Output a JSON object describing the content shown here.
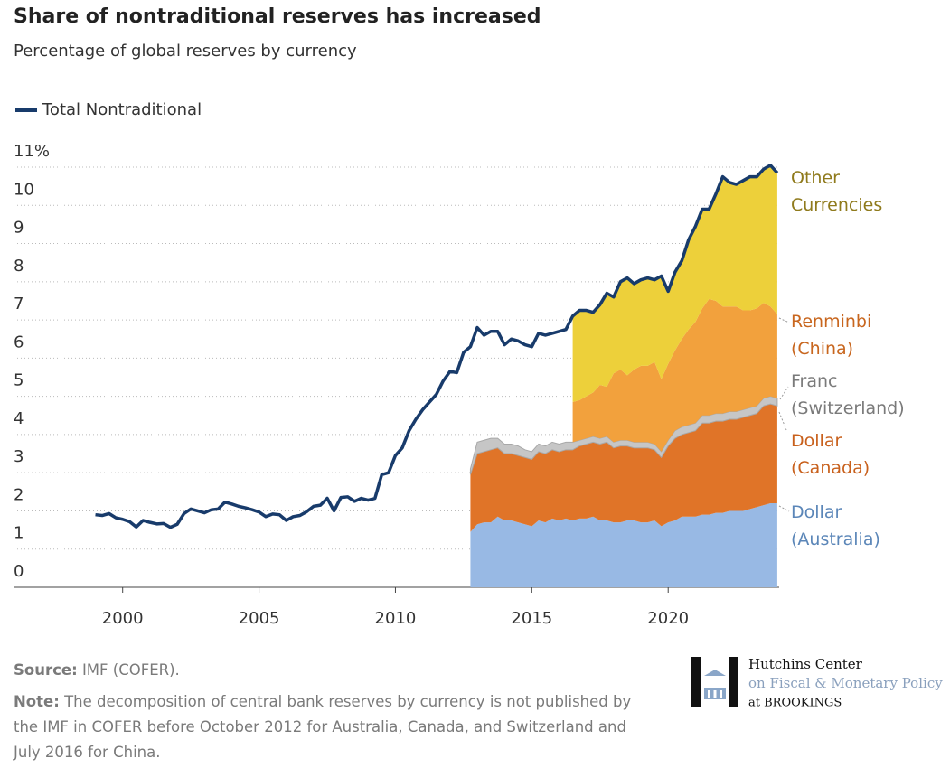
{
  "chart_data": {
    "type": "stacked-area-line",
    "title": "Share of nontraditional reserves has increased",
    "subtitle": "Percentage of global reserves by currency",
    "x": [
      1999,
      1999.25,
      1999.5,
      1999.75,
      2000,
      2000.25,
      2000.5,
      2000.75,
      2001,
      2001.25,
      2001.5,
      2001.75,
      2002,
      2002.25,
      2002.5,
      2002.75,
      2003,
      2003.25,
      2003.5,
      2003.75,
      2004,
      2004.25,
      2004.5,
      2004.75,
      2005,
      2005.25,
      2005.5,
      2005.75,
      2006,
      2006.25,
      2006.5,
      2006.75,
      2007,
      2007.25,
      2007.5,
      2007.75,
      2008,
      2008.25,
      2008.5,
      2008.75,
      2009,
      2009.25,
      2009.5,
      2009.75,
      2010,
      2010.25,
      2010.5,
      2010.75,
      2011,
      2011.25,
      2011.5,
      2011.75,
      2012,
      2012.25,
      2012.5,
      2012.75,
      2013,
      2013.25,
      2013.5,
      2013.75,
      2014,
      2014.25,
      2014.5,
      2014.75,
      2015,
      2015.25,
      2015.5,
      2015.75,
      2016,
      2016.25,
      2016.5,
      2016.75,
      2017,
      2017.25,
      2017.5,
      2017.75,
      2018,
      2018.25,
      2018.5,
      2018.75,
      2019,
      2019.25,
      2019.5,
      2019.75,
      2020,
      2020.25,
      2020.5,
      2020.75,
      2021,
      2021.25,
      2021.5,
      2021.75,
      2022,
      2022.25,
      2022.5,
      2022.75,
      2023,
      2023.25,
      2023.5,
      2023.75,
      2024
    ],
    "series": [
      {
        "name": "Dollar (Australia)",
        "type": "area",
        "color": "#98b9e4",
        "label_color": "#5b86b8",
        "values": [
          null,
          null,
          null,
          null,
          null,
          null,
          null,
          null,
          null,
          null,
          null,
          null,
          null,
          null,
          null,
          null,
          null,
          null,
          null,
          null,
          null,
          null,
          null,
          null,
          null,
          null,
          null,
          null,
          null,
          null,
          null,
          null,
          null,
          null,
          null,
          null,
          null,
          null,
          null,
          null,
          null,
          null,
          null,
          null,
          null,
          null,
          null,
          null,
          null,
          null,
          null,
          null,
          null,
          null,
          null,
          1.45,
          1.65,
          1.7,
          1.7,
          1.85,
          1.75,
          1.75,
          1.7,
          1.65,
          1.6,
          1.75,
          1.7,
          1.8,
          1.75,
          1.8,
          1.75,
          1.8,
          1.8,
          1.85,
          1.75,
          1.75,
          1.7,
          1.7,
          1.75,
          1.75,
          1.7,
          1.7,
          1.75,
          1.6,
          1.7,
          1.75,
          1.85,
          1.85,
          1.85,
          1.9,
          1.9,
          1.95,
          1.95,
          2.0,
          2.0,
          2.0,
          2.05,
          2.1,
          2.15,
          2.2,
          2.2
        ]
      },
      {
        "name": "Dollar (Canada)",
        "type": "area",
        "color": "#e07428",
        "label_color": "#c8601c",
        "values": [
          null,
          null,
          null,
          null,
          null,
          null,
          null,
          null,
          null,
          null,
          null,
          null,
          null,
          null,
          null,
          null,
          null,
          null,
          null,
          null,
          null,
          null,
          null,
          null,
          null,
          null,
          null,
          null,
          null,
          null,
          null,
          null,
          null,
          null,
          null,
          null,
          null,
          null,
          null,
          null,
          null,
          null,
          null,
          null,
          null,
          null,
          null,
          null,
          null,
          null,
          null,
          null,
          null,
          null,
          null,
          1.5,
          1.85,
          1.85,
          1.9,
          1.8,
          1.75,
          1.75,
          1.75,
          1.75,
          1.75,
          1.8,
          1.8,
          1.8,
          1.8,
          1.8,
          1.85,
          1.9,
          1.95,
          1.95,
          2.0,
          2.05,
          1.95,
          2.0,
          1.95,
          1.9,
          1.95,
          1.95,
          1.85,
          1.8,
          2.0,
          2.15,
          2.15,
          2.2,
          2.25,
          2.4,
          2.4,
          2.4,
          2.4,
          2.4,
          2.4,
          2.45,
          2.45,
          2.45,
          2.6,
          2.6,
          2.55
        ]
      },
      {
        "name": "Franc (Switzerland)",
        "type": "area",
        "color": "#c6c6c6",
        "label_color": "#7a7a7a",
        "values": [
          null,
          null,
          null,
          null,
          null,
          null,
          null,
          null,
          null,
          null,
          null,
          null,
          null,
          null,
          null,
          null,
          null,
          null,
          null,
          null,
          null,
          null,
          null,
          null,
          null,
          null,
          null,
          null,
          null,
          null,
          null,
          null,
          null,
          null,
          null,
          null,
          null,
          null,
          null,
          null,
          null,
          null,
          null,
          null,
          null,
          null,
          null,
          null,
          null,
          null,
          null,
          null,
          null,
          null,
          null,
          0.15,
          0.3,
          0.3,
          0.3,
          0.25,
          0.25,
          0.25,
          0.25,
          0.2,
          0.2,
          0.2,
          0.2,
          0.2,
          0.2,
          0.2,
          0.2,
          0.15,
          0.15,
          0.15,
          0.15,
          0.15,
          0.15,
          0.15,
          0.15,
          0.15,
          0.15,
          0.15,
          0.15,
          0.15,
          0.15,
          0.2,
          0.2,
          0.2,
          0.2,
          0.2,
          0.2,
          0.2,
          0.2,
          0.2,
          0.2,
          0.2,
          0.2,
          0.2,
          0.2,
          0.2,
          0.2
        ]
      },
      {
        "name": "Renminbi (China)",
        "type": "area",
        "color": "#f2a13d",
        "label_color": "#c8661e",
        "values": [
          null,
          null,
          null,
          null,
          null,
          null,
          null,
          null,
          null,
          null,
          null,
          null,
          null,
          null,
          null,
          null,
          null,
          null,
          null,
          null,
          null,
          null,
          null,
          null,
          null,
          null,
          null,
          null,
          null,
          null,
          null,
          null,
          null,
          null,
          null,
          null,
          null,
          null,
          null,
          null,
          null,
          null,
          null,
          null,
          null,
          null,
          null,
          null,
          null,
          null,
          null,
          null,
          null,
          null,
          null,
          null,
          null,
          null,
          null,
          null,
          null,
          null,
          null,
          null,
          null,
          null,
          null,
          null,
          null,
          null,
          1.05,
          1.05,
          1.1,
          1.15,
          1.4,
          1.3,
          1.8,
          1.85,
          1.7,
          1.9,
          2.0,
          2.0,
          2.15,
          1.9,
          2.0,
          2.1,
          2.3,
          2.5,
          2.65,
          2.8,
          3.05,
          2.95,
          2.8,
          2.75,
          2.75,
          2.6,
          2.55,
          2.55,
          2.5,
          2.35,
          2.2
        ]
      },
      {
        "name": "Other Currencies",
        "type": "area",
        "color": "#edd03a",
        "label_color": "#8f7a1c",
        "values": [
          null,
          null,
          null,
          null,
          null,
          null,
          null,
          null,
          null,
          null,
          null,
          null,
          null,
          null,
          null,
          null,
          null,
          null,
          null,
          null,
          null,
          null,
          null,
          null,
          null,
          null,
          null,
          null,
          null,
          null,
          null,
          null,
          null,
          null,
          null,
          null,
          null,
          null,
          null,
          null,
          null,
          null,
          null,
          null,
          null,
          null,
          null,
          null,
          null,
          null,
          null,
          null,
          null,
          null,
          null,
          null,
          null,
          null,
          null,
          null,
          null,
          null,
          null,
          null,
          null,
          null,
          null,
          null,
          null,
          null,
          2.25,
          2.35,
          2.25,
          2.1,
          2.1,
          2.45,
          2.0,
          2.3,
          2.55,
          2.25,
          2.25,
          2.3,
          2.15,
          2.7,
          1.9,
          2.05,
          2.05,
          2.35,
          2.5,
          2.6,
          2.35,
          2.8,
          3.4,
          3.25,
          3.2,
          3.4,
          3.5,
          3.45,
          3.5,
          3.7,
          3.7
        ]
      },
      {
        "name": "Total Nontraditional",
        "type": "line",
        "color": "#183b6b",
        "values": [
          1.9,
          1.88,
          1.93,
          1.82,
          1.78,
          1.72,
          1.58,
          1.75,
          1.7,
          1.66,
          1.67,
          1.57,
          1.65,
          1.93,
          2.05,
          2.0,
          1.95,
          2.03,
          2.05,
          2.23,
          2.18,
          2.12,
          2.08,
          2.03,
          1.97,
          1.85,
          1.92,
          1.9,
          1.75,
          1.85,
          1.88,
          1.98,
          2.12,
          2.15,
          2.33,
          2.0,
          2.35,
          2.37,
          2.25,
          2.33,
          2.28,
          2.33,
          2.95,
          3.0,
          3.45,
          3.65,
          4.1,
          4.4,
          4.65,
          4.85,
          5.05,
          5.4,
          5.65,
          5.62,
          6.15,
          6.3,
          6.8,
          6.6,
          6.7,
          6.7,
          6.35,
          6.5,
          6.45,
          6.35,
          6.3,
          6.65,
          6.6,
          6.65,
          6.7,
          6.75,
          7.1,
          7.25,
          7.25,
          7.2,
          7.4,
          7.7,
          7.6,
          8.0,
          8.1,
          7.95,
          8.05,
          8.1,
          8.05,
          8.15,
          7.75,
          8.25,
          8.55,
          9.1,
          9.45,
          9.9,
          9.9,
          10.3,
          10.75,
          10.6,
          10.55,
          10.65,
          10.75,
          10.75,
          10.95,
          11.05,
          10.85
        ]
      }
    ],
    "xlim": [
      1996,
      2024.5
    ],
    "xticks": [
      2000,
      2005,
      2010,
      2015,
      2020
    ],
    "ylim": [
      0,
      11
    ],
    "yticks": [
      0,
      1,
      2,
      3,
      4,
      5,
      6,
      7,
      8,
      9,
      10,
      {
        "value": 11,
        "label": "11%"
      }
    ],
    "grid": true,
    "legend": "top-left"
  },
  "footer": {
    "source_label": "Source:",
    "source": "IMF (COFER).",
    "note_label": "Note:",
    "note": "The decomposition of central bank reserves by currency is not published by the IMF in COFER before October 2012 for Australia, Canada, and Switzerland and July 2016 for China.",
    "logo": [
      "Hutchins Center",
      "on Fiscal & Monetary Policy",
      "at BROOKINGS"
    ]
  }
}
